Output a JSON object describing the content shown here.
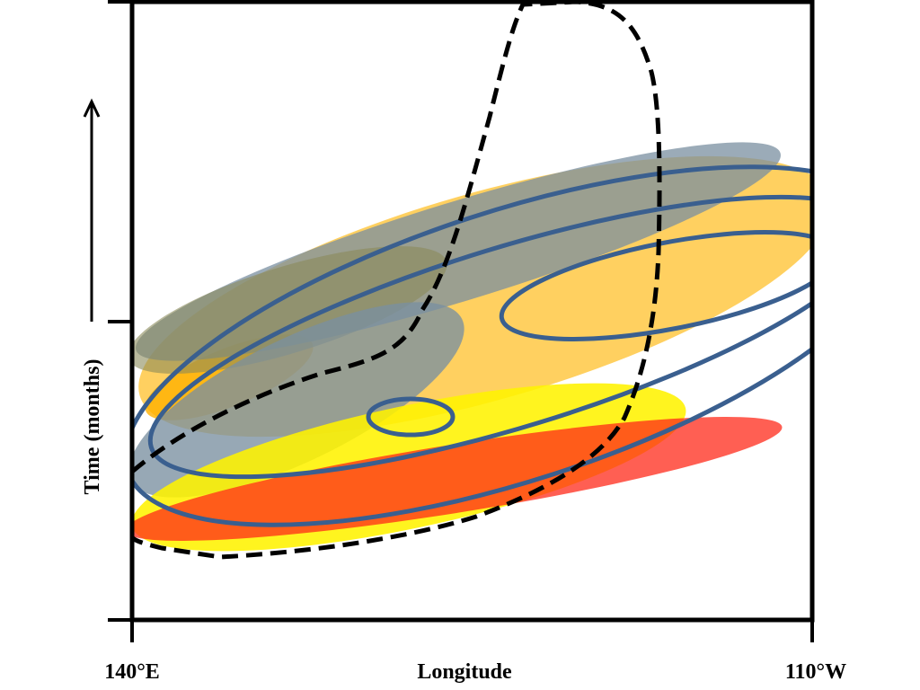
{
  "axes": {
    "x_label": "Longitude",
    "x_tick_left": "140°E",
    "x_tick_right": "110°W",
    "y_label": "Time (months)"
  },
  "colors": {
    "orange_band": "#ffc844",
    "grey_band": "#7a8fa0",
    "yellow_band": "#fff200",
    "red_band": "#ff2a1a",
    "contour": "#3a5f8f",
    "frame": "#000000"
  }
}
